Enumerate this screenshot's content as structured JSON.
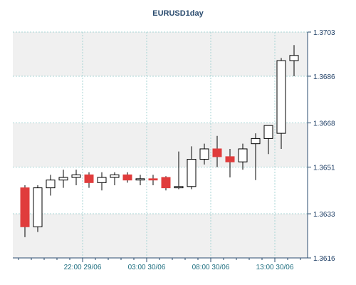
{
  "chart_data": {
    "type": "candlestick",
    "title": "EURUSD1day",
    "ylim": [
      1.3616,
      1.3703
    ],
    "y_ticks": [
      1.3703,
      1.3686,
      1.3668,
      1.3651,
      1.3633,
      1.3616
    ],
    "y_tick_labels": [
      "1.3703",
      "1.3686",
      "1.3668",
      "1.3651",
      "1.3633",
      "1.3616"
    ],
    "x_ticks": [
      {
        "label": "22:00 29/06",
        "index": 4.5
      },
      {
        "label": "03:00 30/06",
        "index": 9.5
      },
      {
        "label": "08:00 30/06",
        "index": 14.5
      },
      {
        "label": "13:00 30/06",
        "index": 19.5
      }
    ],
    "grid": true,
    "up_color": "#ffffff",
    "down_color": "#e03c3c",
    "candles": [
      {
        "open": 1.3643,
        "high": 1.3644,
        "low": 1.3624,
        "close": 1.3628
      },
      {
        "open": 1.3628,
        "high": 1.3644,
        "low": 1.3626,
        "close": 1.3643
      },
      {
        "open": 1.3643,
        "high": 1.3648,
        "low": 1.364,
        "close": 1.3646
      },
      {
        "open": 1.3646,
        "high": 1.365,
        "low": 1.3643,
        "close": 1.3647
      },
      {
        "open": 1.3647,
        "high": 1.365,
        "low": 1.3644,
        "close": 1.3648
      },
      {
        "open": 1.3648,
        "high": 1.3649,
        "low": 1.3643,
        "close": 1.3645
      },
      {
        "open": 1.3645,
        "high": 1.3649,
        "low": 1.3642,
        "close": 1.3647
      },
      {
        "open": 1.3647,
        "high": 1.3649,
        "low": 1.3644,
        "close": 1.3648
      },
      {
        "open": 1.3648,
        "high": 1.3649,
        "low": 1.3645,
        "close": 1.3646
      },
      {
        "open": 1.3646,
        "high": 1.3648,
        "low": 1.3644,
        "close": 1.36465
      },
      {
        "open": 1.36465,
        "high": 1.3648,
        "low": 1.3644,
        "close": 1.3646
      },
      {
        "open": 1.3647,
        "high": 1.36475,
        "low": 1.3642,
        "close": 1.3643
      },
      {
        "open": 1.3643,
        "high": 1.3657,
        "low": 1.36425,
        "close": 1.36435
      },
      {
        "open": 1.36435,
        "high": 1.3659,
        "low": 1.36425,
        "close": 1.3654
      },
      {
        "open": 1.3654,
        "high": 1.366,
        "low": 1.3652,
        "close": 1.3658
      },
      {
        "open": 1.3658,
        "high": 1.3663,
        "low": 1.3651,
        "close": 1.3655
      },
      {
        "open": 1.3655,
        "high": 1.3658,
        "low": 1.3647,
        "close": 1.3653
      },
      {
        "open": 1.3653,
        "high": 1.366,
        "low": 1.365,
        "close": 1.3658
      },
      {
        "open": 1.366,
        "high": 1.3664,
        "low": 1.3646,
        "close": 1.3662
      },
      {
        "open": 1.3662,
        "high": 1.3667,
        "low": 1.3656,
        "close": 1.3667
      },
      {
        "open": 1.3664,
        "high": 1.3693,
        "low": 1.3658,
        "close": 1.3692
      },
      {
        "open": 1.3692,
        "high": 1.3698,
        "low": 1.3686,
        "close": 1.3694
      }
    ]
  },
  "colors": {
    "background": "#ffffff",
    "plot_band_light": "#ffffff",
    "plot_band_shaded": "#f0f0f0",
    "grid": "#a8d4d4",
    "axis": "#2b4c6f",
    "frame": "#c8c8c8"
  }
}
